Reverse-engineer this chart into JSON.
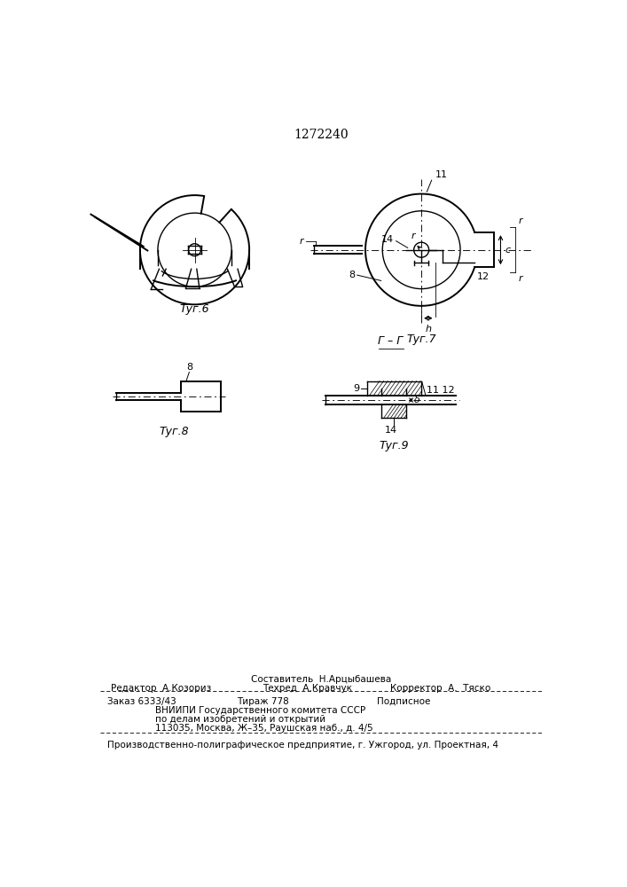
{
  "title": "1272240",
  "bg_color": "#ffffff",
  "line_color": "#000000",
  "fig6_label": "Τуг.6",
  "fig7_label": "Τуг.7",
  "fig8_label": "Τуг.8",
  "fig9_label": "Τуг.9",
  "footer_line0": "Составитель  Н.Арцыбашева",
  "footer_line1_left": "Редактор  А.Козориз",
  "footer_line1_mid": "Техред  А.Кравчук",
  "footer_line1_right": "Корректор  А.  Тяско",
  "footer_line2_col1": "Заказ 6333/43",
  "footer_line2_col2": "Тираж 778",
  "footer_line2_col3": "Подписное",
  "footer_line3": "ВНИИПИ Государственного комитета СССР",
  "footer_line4": "по делам изобретений и открытий",
  "footer_line5": "113035, Москва, Ж–35, Раушская наб., д. 4/5",
  "footer_line6": "Производственно-полиграфическое предприятие, г. Ужгород, ул. Проектная, 4"
}
